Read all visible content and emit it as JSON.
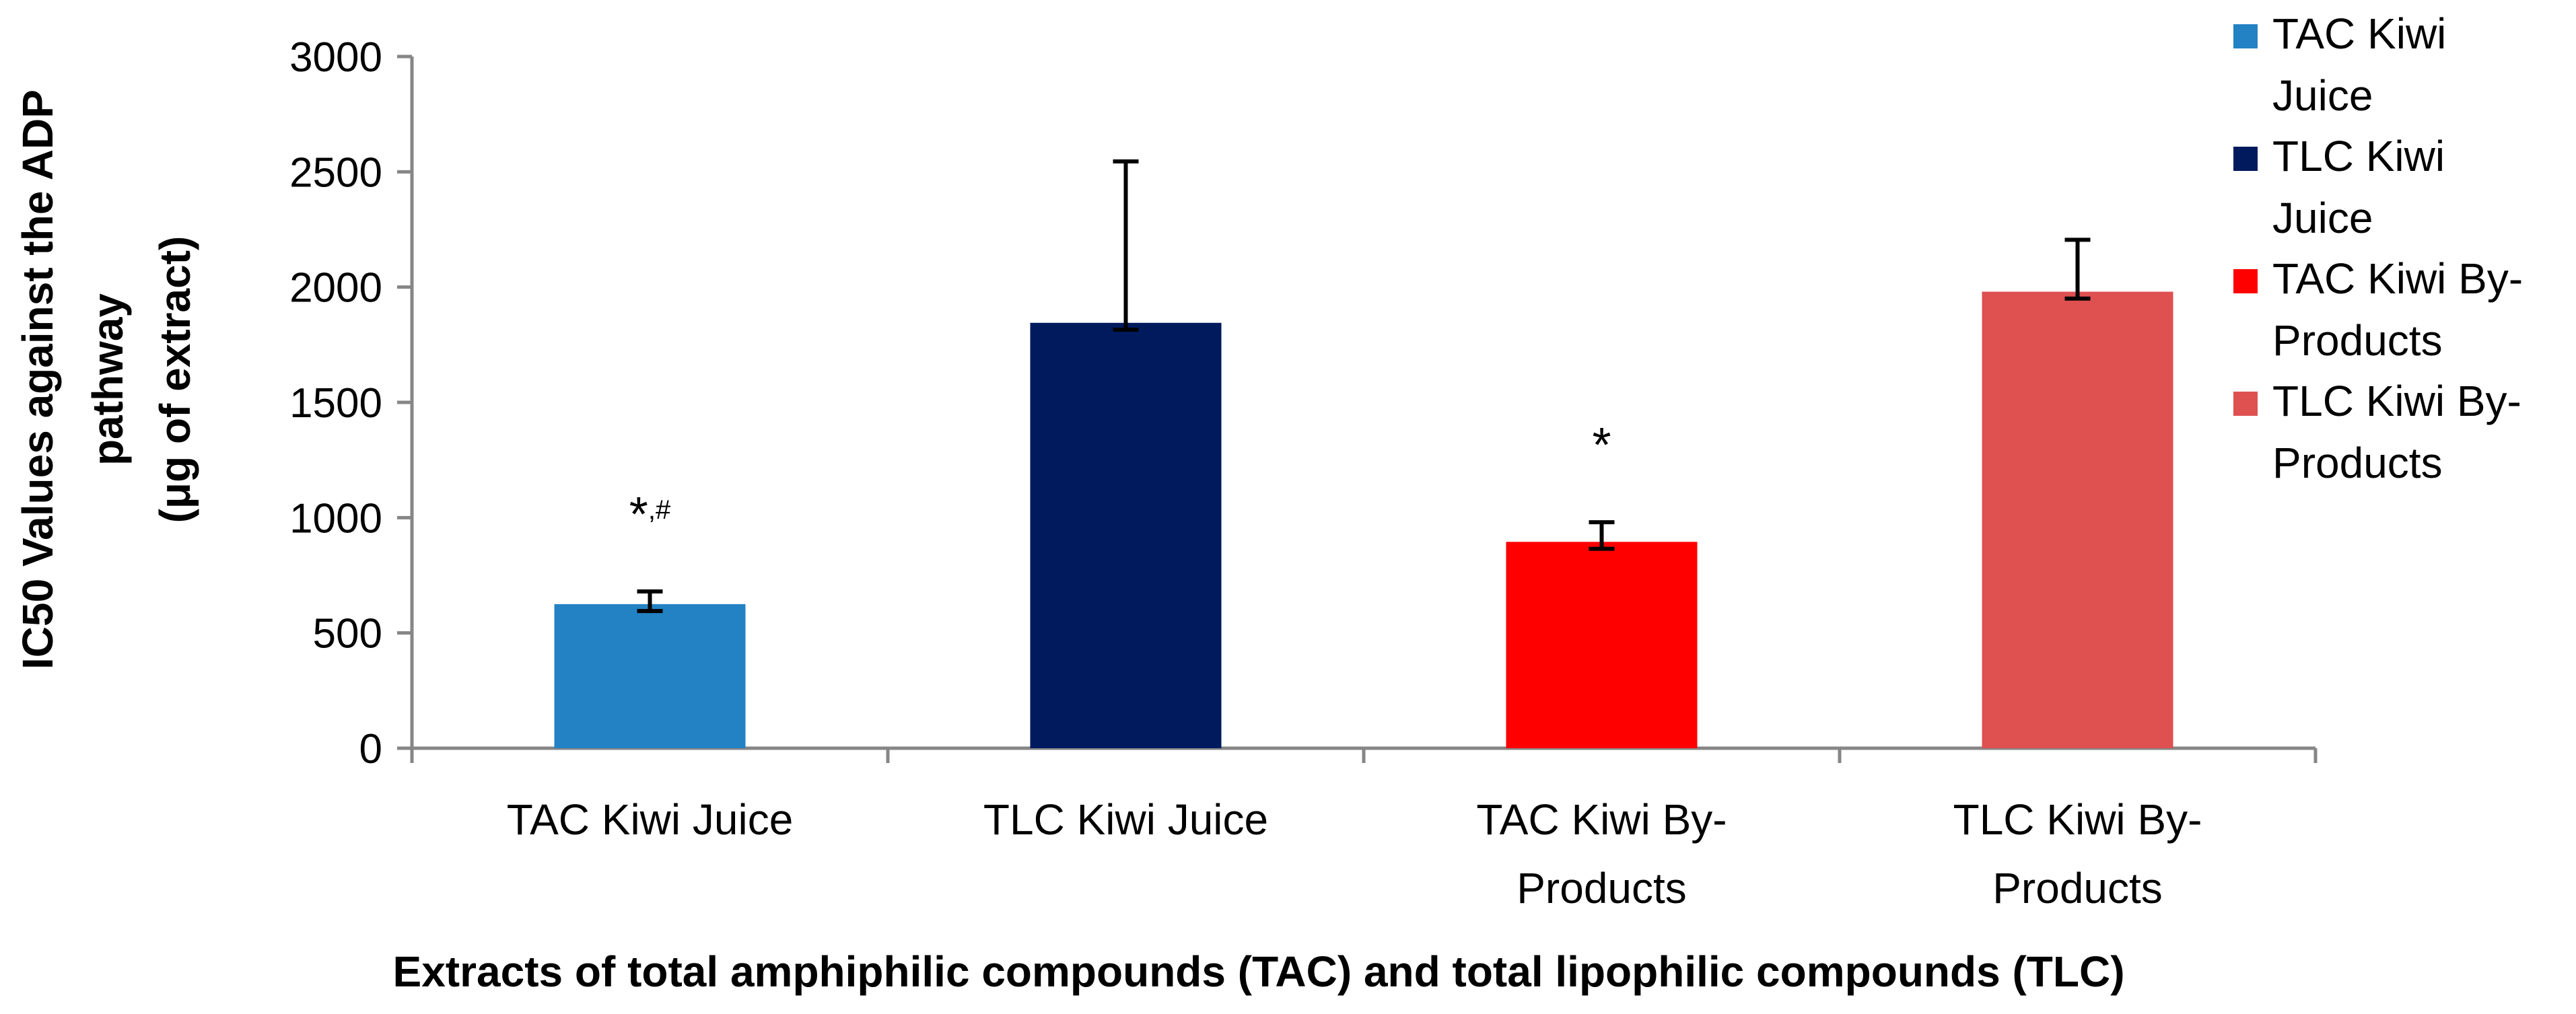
{
  "chart_data": {
    "type": "bar",
    "title": "",
    "xlabel": "Extracts of total amphiphilic compounds (TAC) and total lipophilic compounds (TLC)",
    "ylabel_lines": [
      "IC50 Values against the ADP",
      "pathway",
      "(μg of extract)"
    ],
    "ylim": [
      0,
      3000
    ],
    "yticks": [
      0,
      500,
      1000,
      1500,
      2000,
      2500,
      3000
    ],
    "grid": false,
    "legend_position": "right",
    "categories": [
      {
        "lines": [
          "TAC Kiwi Juice"
        ]
      },
      {
        "lines": [
          "TLC Kiwi Juice"
        ]
      },
      {
        "lines": [
          "TAC Kiwi By-",
          "Products"
        ]
      },
      {
        "lines": [
          "TLC Kiwi By-",
          "Products"
        ]
      }
    ],
    "bars": [
      {
        "name": "TAC Kiwi Juice",
        "value": 625,
        "error": 55,
        "color": "#2382C4",
        "annotation": "*",
        "annotation_sup": ",#"
      },
      {
        "name": "TLC Kiwi Juice",
        "value": 1845,
        "error": 700,
        "color": "#001A5E",
        "annotation": "",
        "annotation_sup": ""
      },
      {
        "name": "TAC Kiwi By-Products",
        "value": 895,
        "error": 85,
        "color": "#FF0000",
        "annotation": "*",
        "annotation_sup": ""
      },
      {
        "name": "TLC Kiwi By-Products",
        "value": 1980,
        "error": 225,
        "color": "#DF5050",
        "annotation": "",
        "annotation_sup": ""
      }
    ],
    "legend": [
      {
        "lines": [
          "TAC Kiwi",
          "Juice"
        ],
        "color": "#2382C4"
      },
      {
        "lines": [
          "TLC Kiwi",
          "Juice"
        ],
        "color": "#001A5E"
      },
      {
        "lines": [
          "TAC Kiwi By-",
          "Products"
        ],
        "color": "#FF0000"
      },
      {
        "lines": [
          "TLC Kiwi By-",
          "Products"
        ],
        "color": "#DF5050"
      }
    ]
  }
}
